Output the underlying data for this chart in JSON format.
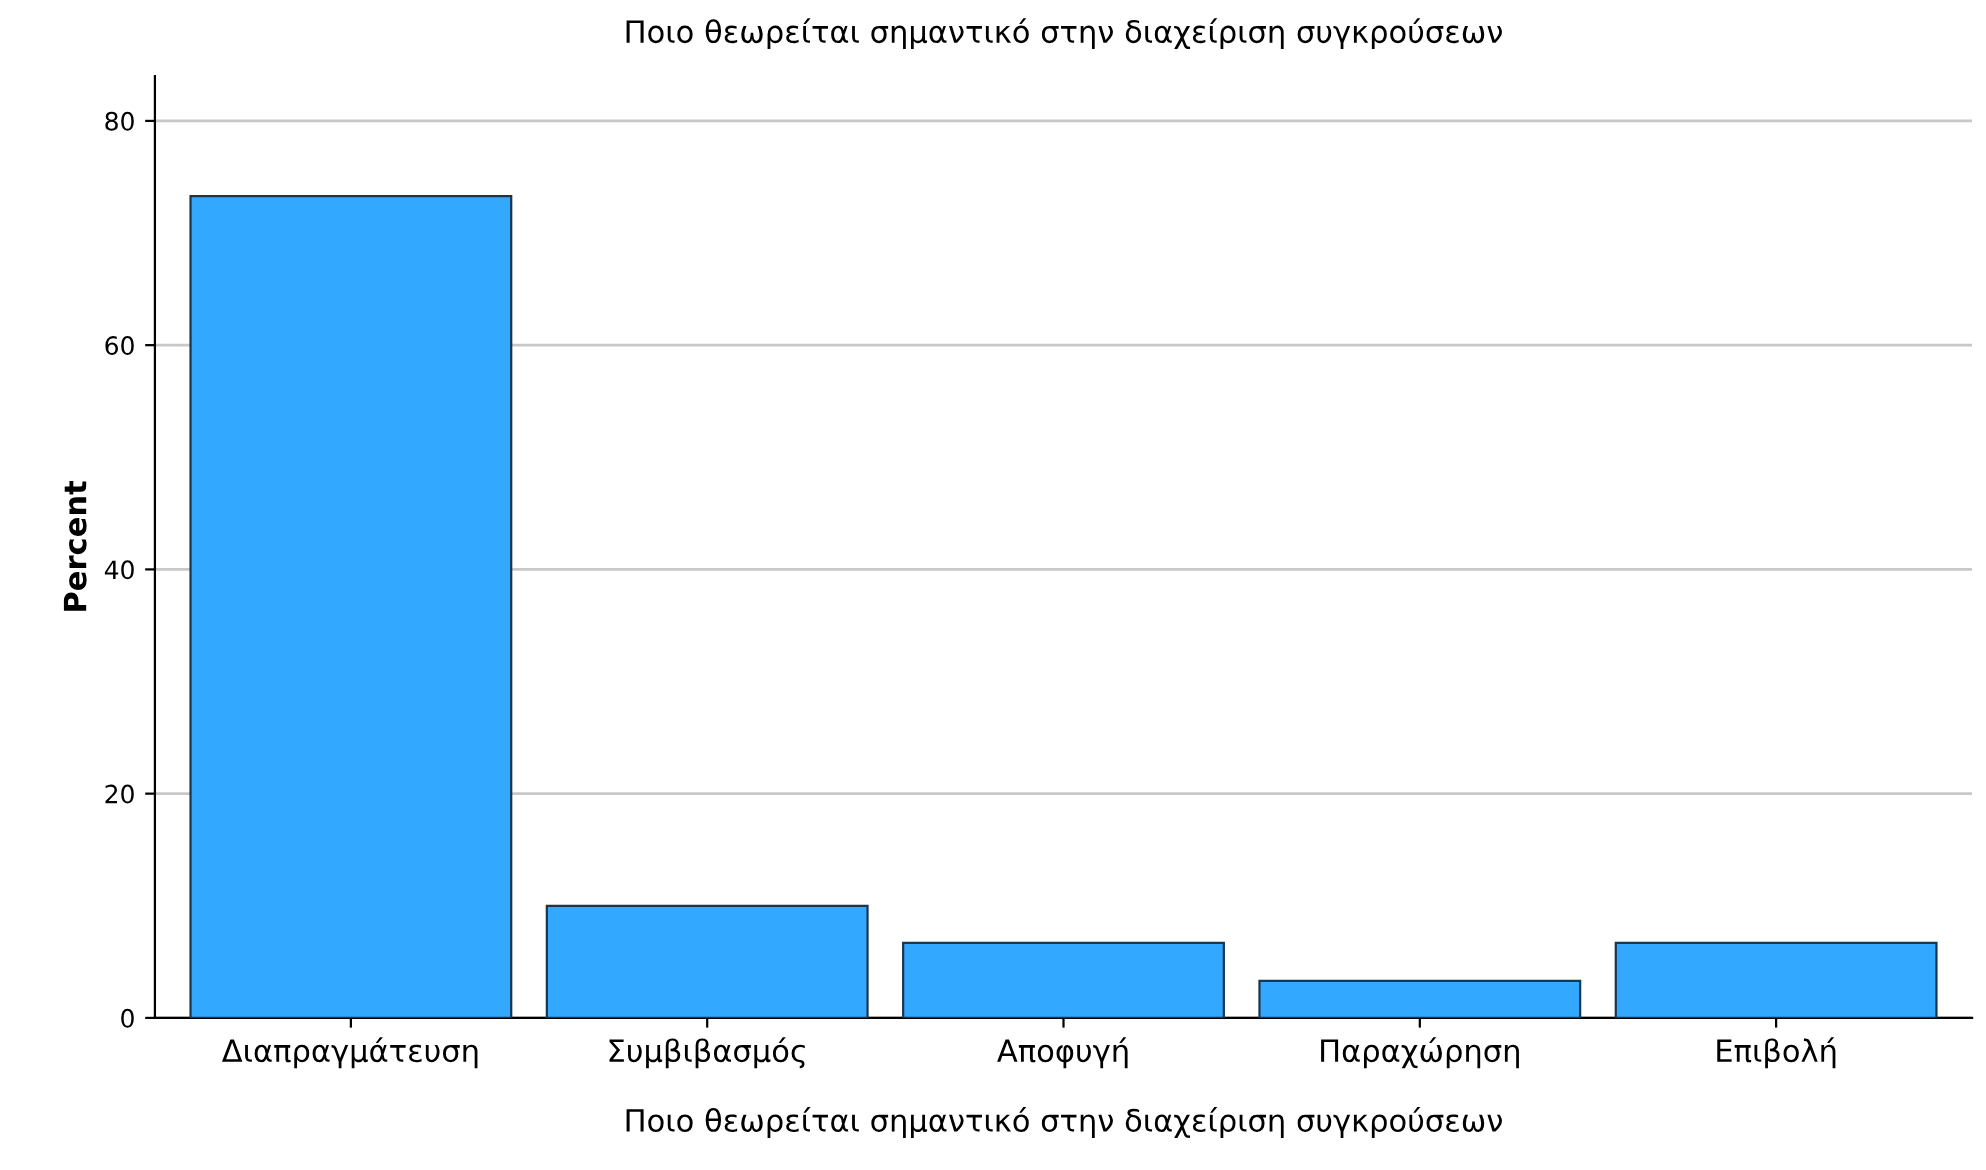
{
  "chart_data": {
    "type": "bar",
    "title": "Ποιο θεωρείται σημαντικό στην διαχείριση συγκρούσεων",
    "xlabel": "Ποιο θεωρείται σημαντικό στην διαχείριση συγκρούσεων",
    "ylabel": "Percent",
    "categories": [
      "Διαπραγμάτευση",
      "Συμβιβασμός",
      "Αποφυγή",
      "Παραχώρηση",
      "Επιβολή"
    ],
    "values": [
      73.3,
      10.0,
      6.7,
      3.3,
      6.7
    ],
    "color": "#33a8ff",
    "ylim": [
      0,
      84
    ],
    "yticks": [
      0,
      20,
      40,
      60,
      80
    ],
    "grid": "y"
  }
}
